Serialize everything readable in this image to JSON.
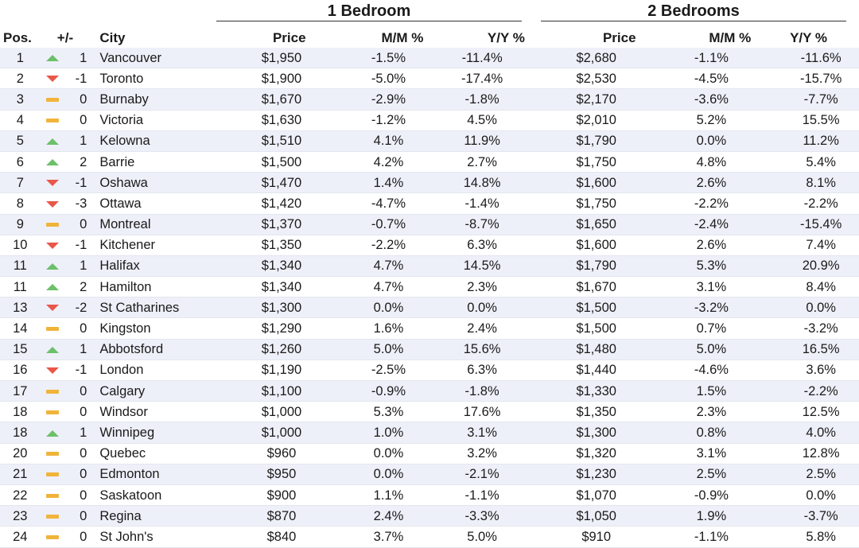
{
  "groups": {
    "one_bedroom": "1 Bedroom",
    "two_bedrooms": "2 Bedrooms"
  },
  "headers": {
    "pos": "Pos.",
    "change": "+/-",
    "city": "City",
    "price1": "Price",
    "mm1": "M/M %",
    "yy1": "Y/Y %",
    "price2": "Price",
    "mm2": "M/M %",
    "yy2": "Y/Y %"
  },
  "colors": {
    "up": "#6cc06a",
    "down": "#e8574a",
    "flat": "#f0b43a",
    "stripe": "#eef0f9"
  },
  "rows": [
    {
      "pos": "1",
      "trend": "up",
      "chg": "1",
      "city": "Vancouver",
      "p1": "$1,950",
      "mm1": "-1.5%",
      "yy1": "-11.4%",
      "p2": "$2,680",
      "mm2": "-1.1%",
      "yy2": "-11.6%"
    },
    {
      "pos": "2",
      "trend": "down",
      "chg": "-1",
      "city": "Toronto",
      "p1": "$1,900",
      "mm1": "-5.0%",
      "yy1": "-17.4%",
      "p2": "$2,530",
      "mm2": "-4.5%",
      "yy2": "-15.7%"
    },
    {
      "pos": "3",
      "trend": "flat",
      "chg": "0",
      "city": "Burnaby",
      "p1": "$1,670",
      "mm1": "-2.9%",
      "yy1": "-1.8%",
      "p2": "$2,170",
      "mm2": "-3.6%",
      "yy2": "-7.7%"
    },
    {
      "pos": "4",
      "trend": "flat",
      "chg": "0",
      "city": "Victoria",
      "p1": "$1,630",
      "mm1": "-1.2%",
      "yy1": "4.5%",
      "p2": "$2,010",
      "mm2": "5.2%",
      "yy2": "15.5%"
    },
    {
      "pos": "5",
      "trend": "up",
      "chg": "1",
      "city": "Kelowna",
      "p1": "$1,510",
      "mm1": "4.1%",
      "yy1": "11.9%",
      "p2": "$1,790",
      "mm2": "0.0%",
      "yy2": "11.2%"
    },
    {
      "pos": "6",
      "trend": "up",
      "chg": "2",
      "city": "Barrie",
      "p1": "$1,500",
      "mm1": "4.2%",
      "yy1": "2.7%",
      "p2": "$1,750",
      "mm2": "4.8%",
      "yy2": "5.4%"
    },
    {
      "pos": "7",
      "trend": "down",
      "chg": "-1",
      "city": "Oshawa",
      "p1": "$1,470",
      "mm1": "1.4%",
      "yy1": "14.8%",
      "p2": "$1,600",
      "mm2": "2.6%",
      "yy2": "8.1%"
    },
    {
      "pos": "8",
      "trend": "down",
      "chg": "-3",
      "city": "Ottawa",
      "p1": "$1,420",
      "mm1": "-4.7%",
      "yy1": "-1.4%",
      "p2": "$1,750",
      "mm2": "-2.2%",
      "yy2": "-2.2%"
    },
    {
      "pos": "9",
      "trend": "flat",
      "chg": "0",
      "city": "Montreal",
      "p1": "$1,370",
      "mm1": "-0.7%",
      "yy1": "-8.7%",
      "p2": "$1,650",
      "mm2": "-2.4%",
      "yy2": "-15.4%"
    },
    {
      "pos": "10",
      "trend": "down",
      "chg": "-1",
      "city": "Kitchener",
      "p1": "$1,350",
      "mm1": "-2.2%",
      "yy1": "6.3%",
      "p2": "$1,600",
      "mm2": "2.6%",
      "yy2": "7.4%"
    },
    {
      "pos": "11",
      "trend": "up",
      "chg": "1",
      "city": "Halifax",
      "p1": "$1,340",
      "mm1": "4.7%",
      "yy1": "14.5%",
      "p2": "$1,790",
      "mm2": "5.3%",
      "yy2": "20.9%"
    },
    {
      "pos": "11",
      "trend": "up",
      "chg": "2",
      "city": "Hamilton",
      "p1": "$1,340",
      "mm1": "4.7%",
      "yy1": "2.3%",
      "p2": "$1,670",
      "mm2": "3.1%",
      "yy2": "8.4%"
    },
    {
      "pos": "13",
      "trend": "down",
      "chg": "-2",
      "city": "St Catharines",
      "p1": "$1,300",
      "mm1": "0.0%",
      "yy1": "0.0%",
      "p2": "$1,500",
      "mm2": "-3.2%",
      "yy2": "0.0%"
    },
    {
      "pos": "14",
      "trend": "flat",
      "chg": "0",
      "city": "Kingston",
      "p1": "$1,290",
      "mm1": "1.6%",
      "yy1": "2.4%",
      "p2": "$1,500",
      "mm2": "0.7%",
      "yy2": "-3.2%"
    },
    {
      "pos": "15",
      "trend": "up",
      "chg": "1",
      "city": "Abbotsford",
      "p1": "$1,260",
      "mm1": "5.0%",
      "yy1": "15.6%",
      "p2": "$1,480",
      "mm2": "5.0%",
      "yy2": "16.5%"
    },
    {
      "pos": "16",
      "trend": "down",
      "chg": "-1",
      "city": "London",
      "p1": "$1,190",
      "mm1": "-2.5%",
      "yy1": "6.3%",
      "p2": "$1,440",
      "mm2": "-4.6%",
      "yy2": "3.6%"
    },
    {
      "pos": "17",
      "trend": "flat",
      "chg": "0",
      "city": "Calgary",
      "p1": "$1,100",
      "mm1": "-0.9%",
      "yy1": "-1.8%",
      "p2": "$1,330",
      "mm2": "1.5%",
      "yy2": "-2.2%"
    },
    {
      "pos": "18",
      "trend": "flat",
      "chg": "0",
      "city": "Windsor",
      "p1": "$1,000",
      "mm1": "5.3%",
      "yy1": "17.6%",
      "p2": "$1,350",
      "mm2": "2.3%",
      "yy2": "12.5%"
    },
    {
      "pos": "18",
      "trend": "up",
      "chg": "1",
      "city": "Winnipeg",
      "p1": "$1,000",
      "mm1": "1.0%",
      "yy1": "3.1%",
      "p2": "$1,300",
      "mm2": "0.8%",
      "yy2": "4.0%"
    },
    {
      "pos": "20",
      "trend": "flat",
      "chg": "0",
      "city": "Quebec",
      "p1": "$960",
      "mm1": "0.0%",
      "yy1": "3.2%",
      "p2": "$1,320",
      "mm2": "3.1%",
      "yy2": "12.8%"
    },
    {
      "pos": "21",
      "trend": "flat",
      "chg": "0",
      "city": "Edmonton",
      "p1": "$950",
      "mm1": "0.0%",
      "yy1": "-2.1%",
      "p2": "$1,230",
      "mm2": "2.5%",
      "yy2": "2.5%"
    },
    {
      "pos": "22",
      "trend": "flat",
      "chg": "0",
      "city": "Saskatoon",
      "p1": "$900",
      "mm1": "1.1%",
      "yy1": "-1.1%",
      "p2": "$1,070",
      "mm2": "-0.9%",
      "yy2": "0.0%"
    },
    {
      "pos": "23",
      "trend": "flat",
      "chg": "0",
      "city": "Regina",
      "p1": "$870",
      "mm1": "2.4%",
      "yy1": "-3.3%",
      "p2": "$1,050",
      "mm2": "1.9%",
      "yy2": "-3.7%"
    },
    {
      "pos": "24",
      "trend": "flat",
      "chg": "0",
      "city": "St John's",
      "p1": "$840",
      "mm1": "3.7%",
      "yy1": "5.0%",
      "p2": "$910",
      "mm2": "-1.1%",
      "yy2": "5.8%"
    }
  ]
}
